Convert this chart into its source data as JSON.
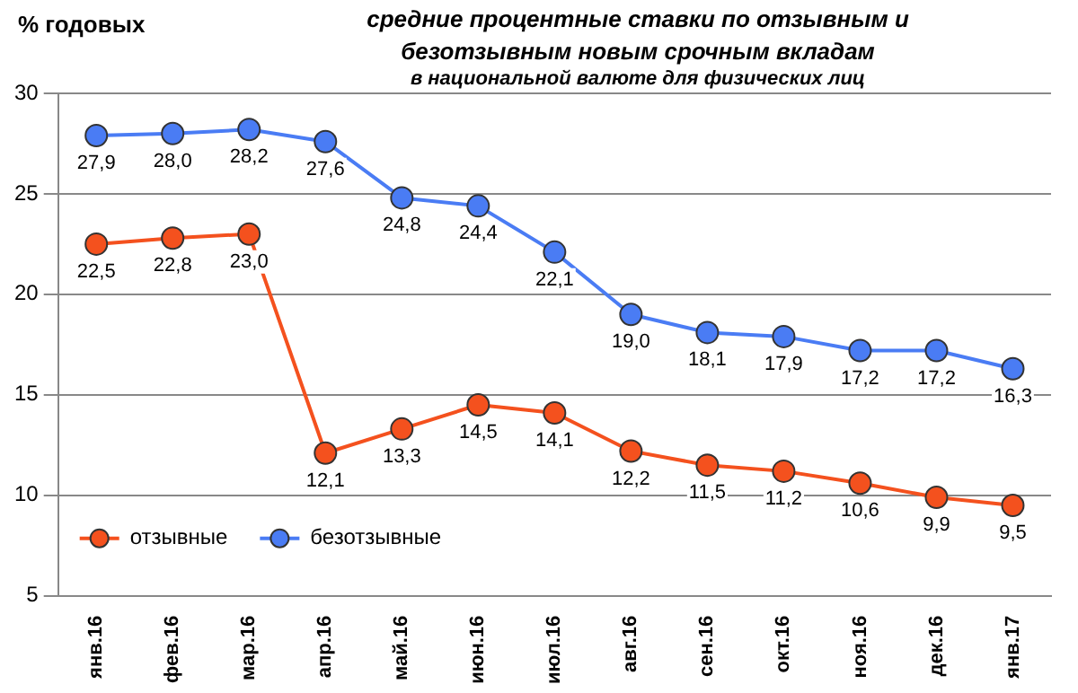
{
  "chart_data": {
    "type": "line",
    "title": "средние процентные ставки по отзывным и безотзывным новым срочным вкладам",
    "subtitle": "в национальной валюте для физических лиц",
    "ylabel": "% годовых",
    "categories": [
      "янв.16",
      "фев.16",
      "мар.16",
      "апр.16",
      "май.16",
      "июн.16",
      "июл.16",
      "авг.16",
      "сен.16",
      "окт.16",
      "ноя.16",
      "дек.16",
      "янв.17"
    ],
    "series": [
      {
        "name": "отзывные",
        "color": "#f4511e",
        "values": [
          22.5,
          22.8,
          23.0,
          12.1,
          13.3,
          14.5,
          14.1,
          12.2,
          11.5,
          11.2,
          10.6,
          9.9,
          9.5
        ],
        "value_labels": [
          "22,5",
          "22,8",
          "23,0",
          "12,1",
          "13,3",
          "14,5",
          "14,1",
          "12,2",
          "11,5",
          "11,2",
          "10,6",
          "9,9",
          "9,5"
        ]
      },
      {
        "name": "безотзывные",
        "color": "#4a7cf4",
        "values": [
          27.9,
          28.0,
          28.2,
          27.6,
          24.8,
          24.4,
          22.1,
          19.0,
          18.1,
          17.9,
          17.2,
          17.2,
          16.3
        ],
        "value_labels": [
          "27,9",
          "28,0",
          "28,2",
          "27,6",
          "24,8",
          "24,4",
          "22,1",
          "19,0",
          "18,1",
          "17,9",
          "17,2",
          "17,2",
          "16,3"
        ]
      }
    ],
    "ylim": [
      5,
      30
    ],
    "yticks": [
      5,
      10,
      15,
      20,
      25,
      30
    ],
    "grid": "y",
    "legend": "bottom left",
    "marker": "circle",
    "line_style": "solid"
  }
}
